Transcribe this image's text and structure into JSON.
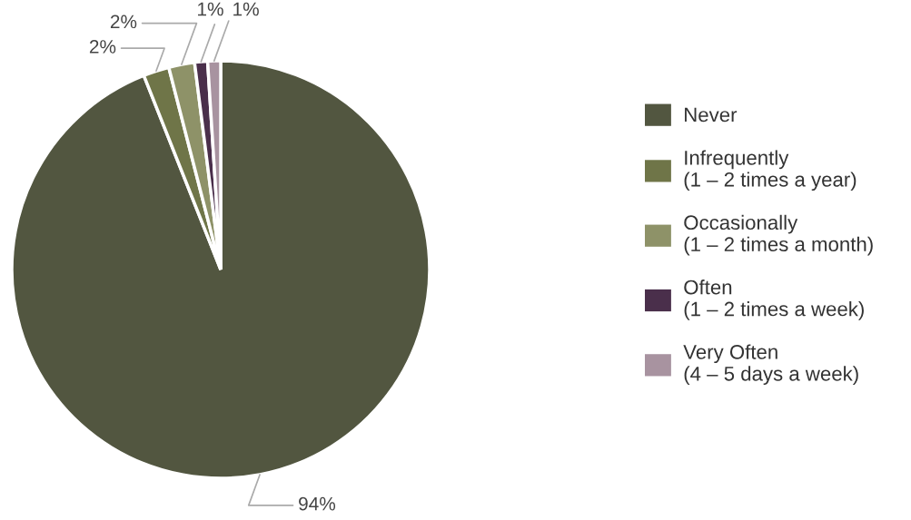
{
  "chart_data": {
    "type": "pie",
    "categories": [
      "Never",
      "Infrequently\n(1 – 2 times a year)",
      "Occasionally\n(1 – 2 times a month)",
      "Often\n(1 – 2 times a week)",
      "Very Often\n(4 – 5 days a week)"
    ],
    "values": [
      94,
      2,
      2,
      1,
      1
    ],
    "value_labels": [
      "94%",
      "2%",
      "2%",
      "1%",
      "1%"
    ],
    "colors": [
      "#525640",
      "#6f7548",
      "#8e9268",
      "#4a2f4b",
      "#a893a0"
    ],
    "legend": "right"
  }
}
